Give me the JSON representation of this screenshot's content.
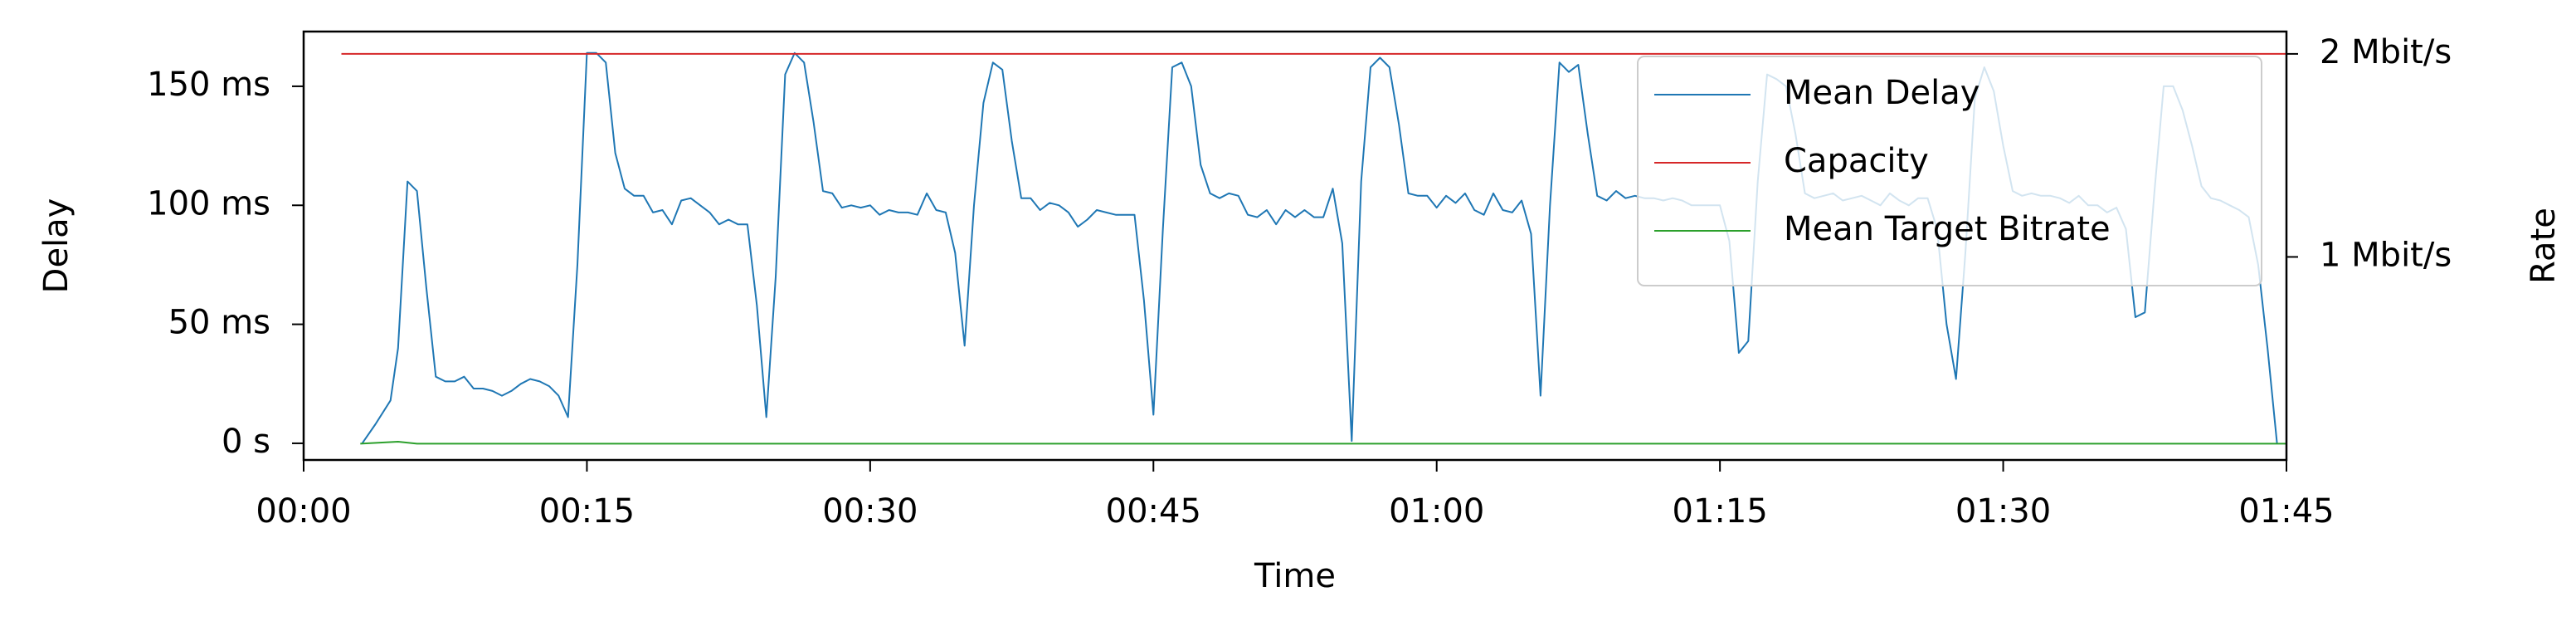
{
  "chart_data": {
    "type": "line",
    "xlabel": "Time",
    "ylabel": "Delay",
    "y2label": "Rate",
    "ylabel_color": "#1f77b4",
    "y2label_color": "#d62728",
    "xlim": [
      0,
      105
    ],
    "ylim": [
      -7,
      173
    ],
    "y2lim": [
      0,
      2.11
    ],
    "xticks": [
      {
        "value": 0,
        "label": "00:00"
      },
      {
        "value": 15,
        "label": "00:15"
      },
      {
        "value": 30,
        "label": "00:30"
      },
      {
        "value": 45,
        "label": "00:45"
      },
      {
        "value": 60,
        "label": "01:00"
      },
      {
        "value": 75,
        "label": "01:15"
      },
      {
        "value": 90,
        "label": "01:30"
      },
      {
        "value": 105,
        "label": "01:45"
      }
    ],
    "yticks": [
      {
        "value": 0,
        "label": "0 s"
      },
      {
        "value": 50,
        "label": "50 ms"
      },
      {
        "value": 100,
        "label": "100 ms"
      },
      {
        "value": 150,
        "label": "150 ms"
      }
    ],
    "y2ticks": [
      {
        "value": 1,
        "label": "1 Mbit/s"
      },
      {
        "value": 2,
        "label": "2 Mbit/s"
      }
    ],
    "legend": "upper right",
    "series": [
      {
        "name": "Mean Delay",
        "color": "#1f77b4",
        "x": [
          3.1,
          3.8,
          4.6,
          5,
          5.5,
          6,
          6.5,
          7,
          7.5,
          8,
          8.5,
          9,
          9.5,
          10,
          10.5,
          11,
          11.5,
          12,
          12.5,
          13,
          13.5,
          14,
          14.5,
          15,
          15.5,
          16,
          16.5,
          17,
          17.5,
          18,
          18.5,
          19,
          19.5,
          20,
          20.5,
          21,
          21.5,
          22,
          22.5,
          23,
          23.5,
          24,
          24.5,
          25,
          25.5,
          26,
          26.5,
          27,
          27.5,
          28,
          28.5,
          29,
          29.5,
          30,
          30.5,
          31,
          31.5,
          32,
          32.5,
          33,
          33.5,
          34,
          34.5,
          35,
          35.5,
          36,
          36.5,
          37,
          37.5,
          38,
          38.5,
          39,
          39.5,
          40,
          40.5,
          41,
          41.5,
          42,
          42.5,
          43,
          43.5,
          44,
          44.5,
          45,
          45.5,
          46,
          46.5,
          47,
          47.5,
          48,
          48.5,
          49,
          49.5,
          50,
          50.5,
          51,
          51.5,
          52,
          52.5,
          53,
          53.5,
          54,
          54.5,
          55,
          55.5,
          56,
          56.5,
          57,
          57.5,
          58,
          58.5,
          59,
          59.5,
          60,
          60.5,
          61,
          61.5,
          62,
          62.5,
          63,
          63.5,
          64,
          64.5,
          65,
          65.5,
          66,
          66.5,
          67,
          67.5,
          68,
          68.5,
          69,
          69.5,
          70,
          70.5,
          71,
          71.5,
          72,
          72.5,
          73,
          73.5,
          74,
          74.5,
          75,
          75.5,
          76,
          76.5,
          77,
          77.5,
          78,
          78.5,
          79,
          79.5,
          80,
          80.5,
          81,
          81.5,
          82,
          82.5,
          83,
          83.5,
          84,
          84.5,
          85,
          85.5,
          86,
          86.5,
          87,
          87.5,
          88,
          88.5,
          89,
          89.5,
          90,
          90.5,
          91,
          91.5,
          92,
          92.5,
          93,
          93.5,
          94,
          94.5,
          95,
          95.5,
          96,
          96.5,
          97,
          97.5,
          98,
          98.5,
          99,
          99.5,
          100,
          100.5,
          101,
          101.5,
          102,
          102.5,
          103,
          103.5,
          104,
          104.5
        ],
        "values": [
          0,
          8,
          18,
          40,
          110,
          106,
          65,
          28,
          26,
          26,
          28,
          23,
          23,
          22,
          20,
          22,
          25,
          27,
          26,
          24,
          20,
          11,
          75,
          164,
          164,
          160,
          122,
          107,
          104,
          104,
          97,
          98,
          92,
          102,
          103,
          100,
          97,
          92,
          94,
          92,
          92,
          58,
          11,
          70,
          155,
          164,
          160,
          135,
          106,
          105,
          99,
          100,
          99,
          100,
          96,
          98,
          97,
          97,
          96,
          105,
          98,
          97,
          80,
          41,
          100,
          143,
          160,
          157,
          127,
          103,
          103,
          98,
          101,
          100,
          97,
          91,
          94,
          98,
          97,
          96,
          96,
          96,
          60,
          12,
          90,
          158,
          160,
          150,
          117,
          105,
          103,
          105,
          104,
          96,
          95,
          98,
          92,
          98,
          95,
          98,
          95,
          95,
          107,
          84,
          1,
          110,
          158,
          162,
          158,
          134,
          105,
          104,
          104,
          99,
          104,
          101,
          105,
          98,
          96,
          105,
          98,
          97,
          102,
          88,
          20,
          100,
          160,
          156,
          159,
          130,
          104,
          102,
          106,
          103,
          104,
          103,
          103,
          102,
          103,
          102,
          100,
          100,
          100,
          100,
          85,
          38,
          43,
          110,
          155,
          153,
          150,
          130,
          105,
          103,
          104,
          105,
          102,
          103,
          104,
          102,
          100,
          105,
          102,
          100,
          103,
          103,
          90,
          50,
          27,
          80,
          145,
          158,
          148,
          125,
          106,
          104,
          105,
          104,
          104,
          103,
          101,
          104,
          100,
          100,
          97,
          99,
          90,
          53,
          55,
          105,
          150,
          150,
          140,
          125,
          108,
          103,
          102,
          100,
          98,
          95,
          75,
          40,
          0
        ]
      },
      {
        "name": "Capacity",
        "color": "#d62728",
        "axis": "y2",
        "x": [
          2,
          105
        ],
        "values": [
          2,
          2
        ]
      },
      {
        "name": "Mean Target Bitrate",
        "color": "#2ca02c",
        "axis": "y2",
        "x": [
          3,
          5,
          6,
          105
        ],
        "values": [
          0.08,
          0.09,
          0.08,
          0.08
        ]
      }
    ]
  }
}
